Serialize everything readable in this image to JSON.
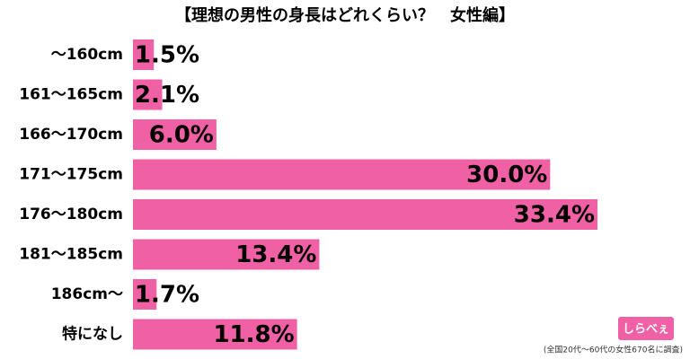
{
  "chart_data": {
    "type": "bar",
    "orientation": "horizontal",
    "title": "【理想の男性の身長はどれくらい？　女性編】",
    "categories": [
      "～160cm",
      "161～165cm",
      "166～170cm",
      "171～175cm",
      "176～180cm",
      "181～185cm",
      "186cm～",
      "特になし"
    ],
    "values": [
      1.5,
      2.1,
      6.0,
      30.0,
      33.4,
      13.4,
      1.7,
      11.8
    ],
    "value_labels": [
      "1.5%",
      "2.1%",
      "6.0%",
      "30.0%",
      "33.4%",
      "13.4%",
      "1.7%",
      "11.8%"
    ],
    "color": "#ef60a4",
    "footnote": "(全国20代～60代の女性670名に調査)",
    "logo": "しらべぇ"
  }
}
